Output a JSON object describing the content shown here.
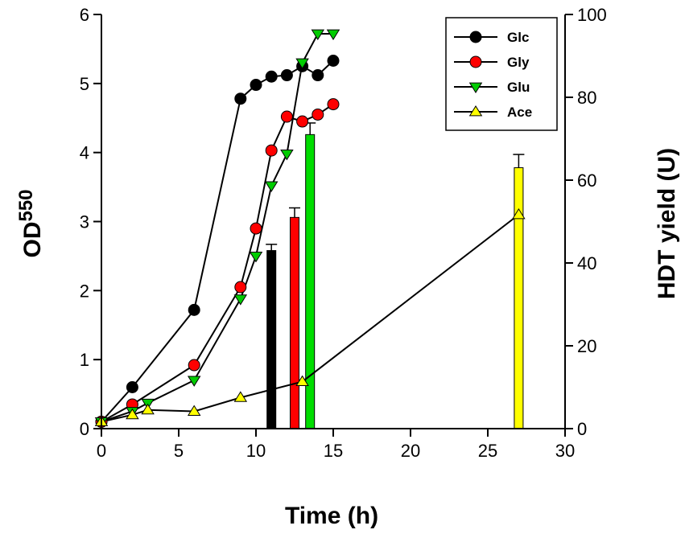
{
  "chart_data": {
    "type": "line",
    "title": "",
    "xlabel": "Time (h)",
    "ylabel_left_base": "OD",
    "ylabel_left_sup": "550",
    "ylabel_right": "HDT yield (U)",
    "xlim": [
      0,
      30
    ],
    "ylim_left": [
      0,
      6
    ],
    "ylim_right": [
      0,
      100
    ],
    "x_ticks": [
      0,
      5,
      10,
      15,
      20,
      25,
      30
    ],
    "y_left_ticks": [
      0,
      1,
      2,
      3,
      4,
      5,
      6
    ],
    "y_right_ticks": [
      0,
      20,
      40,
      60,
      80,
      100
    ],
    "grid": false,
    "legend_position": "top-right",
    "series": [
      {
        "name": "Glc",
        "color": "#000000",
        "marker": "circle",
        "x": [
          0,
          2,
          6,
          9,
          10,
          11,
          12,
          13,
          14,
          15
        ],
        "y": [
          0.1,
          0.6,
          1.72,
          4.78,
          4.98,
          5.1,
          5.12,
          5.25,
          5.12,
          5.33
        ]
      },
      {
        "name": "Gly",
        "color": "#ff0000",
        "marker": "circle",
        "x": [
          0,
          2,
          6,
          9,
          10,
          11,
          12,
          13,
          14,
          15
        ],
        "y": [
          0.1,
          0.35,
          0.92,
          2.05,
          2.9,
          4.03,
          4.52,
          4.45,
          4.55,
          4.7
        ]
      },
      {
        "name": "Glu",
        "color": "#00cc00",
        "marker": "triangle-down",
        "x": [
          0,
          2,
          3,
          6,
          9,
          10,
          11,
          12,
          13,
          14,
          15
        ],
        "y": [
          0.1,
          0.25,
          0.37,
          0.7,
          1.88,
          2.5,
          3.52,
          3.98,
          5.3,
          5.72,
          5.72
        ]
      },
      {
        "name": "Ace",
        "color": "#ffff00",
        "marker": "triangle-up",
        "x": [
          0,
          2,
          3,
          6,
          9,
          13,
          27
        ],
        "y": [
          0.1,
          0.2,
          0.27,
          0.25,
          0.45,
          0.68,
          3.1
        ]
      }
    ],
    "bars": [
      {
        "name": "Glc",
        "x": 11,
        "value": 43,
        "error": 1.5,
        "color": "#000000"
      },
      {
        "name": "Gly",
        "x": 12.5,
        "value": 51,
        "error": 2.3,
        "color": "#ff0000"
      },
      {
        "name": "Glu",
        "x": 13.5,
        "value": 71,
        "error": 2.8,
        "color": "#00dd00"
      },
      {
        "name": "Ace",
        "x": 27,
        "value": 63,
        "error": 3.2,
        "color": "#ffff00"
      }
    ]
  }
}
